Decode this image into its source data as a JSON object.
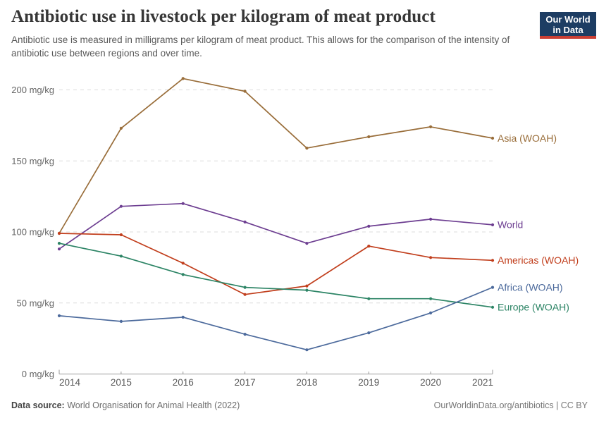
{
  "header": {
    "title": "Antibiotic use in livestock per kilogram of meat product",
    "subtitle": "Antibiotic use is measured in milligrams per kilogram of meat product. This allows for the comparison of the intensity of antibiotic use between regions and over time.",
    "logo": {
      "line1": "Our World",
      "line2": "in Data",
      "bg_color": "#1d3d63",
      "bar_color": "#cb3f34"
    }
  },
  "chart_data": {
    "type": "line",
    "title": "Antibiotic use in livestock per kilogram of meat product",
    "x": [
      2014,
      2015,
      2016,
      2017,
      2018,
      2019,
      2020,
      2021
    ],
    "series": [
      {
        "name": "Asia (WOAH)",
        "color": "#996d39",
        "values": [
          99,
          173,
          208,
          199,
          159,
          167,
          174,
          166
        ]
      },
      {
        "name": "World",
        "color": "#6d3e91",
        "values": [
          88,
          118,
          120,
          107,
          92,
          104,
          109,
          105
        ]
      },
      {
        "name": "Americas (WOAH)",
        "color": "#c13e1c",
        "values": [
          99,
          98,
          78,
          56,
          62,
          90,
          82,
          80
        ]
      },
      {
        "name": "Europe (WOAH)",
        "color": "#2c8465",
        "values": [
          92,
          83,
          70,
          61,
          59,
          53,
          53,
          47
        ]
      },
      {
        "name": "Africa (WOAH)",
        "color": "#4c6a9c",
        "values": [
          41,
          37,
          40,
          28,
          17,
          29,
          43,
          61
        ]
      }
    ],
    "yticks": [
      {
        "value": 0,
        "label": "0 mg/kg"
      },
      {
        "value": 50,
        "label": "50 mg/kg"
      },
      {
        "value": 100,
        "label": "100 mg/kg"
      },
      {
        "value": 150,
        "label": "150 mg/kg"
      },
      {
        "value": 200,
        "label": "200 mg/kg"
      }
    ],
    "xlabel": "",
    "ylabel": "mg/kg",
    "ylim": [
      0,
      212
    ],
    "grid": "horizontal-dashed",
    "legend_position": "right-of-line-ends",
    "axis_color": "#999999",
    "grid_color": "#dcdcdc",
    "ytick_color": "#666666",
    "xtick_color": "#595959"
  },
  "footer": {
    "source_label": "Data source:",
    "source_value": " World Organisation for Animal Health (2022)",
    "attribution": "OurWorldinData.org/antibiotics | CC BY"
  }
}
